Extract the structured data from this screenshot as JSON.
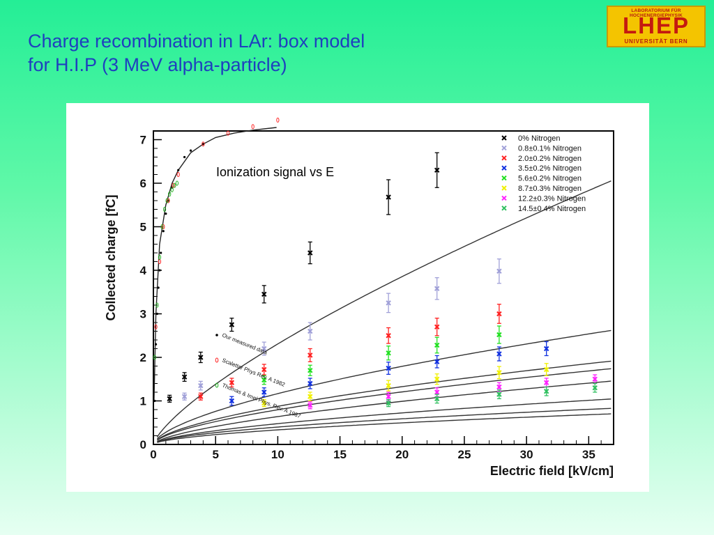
{
  "title": {
    "line1": "Charge recombination in LAr: box model",
    "line2": "for H.I.P (3 MeV alpha-particle)"
  },
  "logo": {
    "top": "LABORATORIUM FÜR HOCHENERGIEPHYSIK",
    "main": "LHEP",
    "bottom": "UNIVERSITÄT BERN"
  },
  "colors": {
    "title": "#1f3fbf",
    "logo_bg": "#f4c400",
    "logo_text": "#c41a10"
  },
  "chart_data": {
    "type": "scatter",
    "xlabel": "Electric field [kV/cm]",
    "ylabel": "Collected charge [fC]",
    "xlim": [
      0,
      37
    ],
    "ylim": [
      0,
      7.2
    ],
    "xticks": [
      0,
      5,
      10,
      15,
      20,
      25,
      30,
      35
    ],
    "yticks": [
      0,
      1,
      2,
      3,
      4,
      5,
      6,
      7
    ],
    "annotation": "Ionization signal  vs E",
    "legend_position": "top-right",
    "series": [
      {
        "name": "0% Nitrogen",
        "color": "#000000",
        "x": [
          1.3,
          2.5,
          3.8,
          6.3,
          8.9,
          12.6,
          18.9,
          22.8
        ],
        "y": [
          1.05,
          1.55,
          2.0,
          2.75,
          3.45,
          4.4,
          5.68,
          6.3
        ],
        "err": [
          0.08,
          0.1,
          0.12,
          0.15,
          0.2,
          0.25,
          0.4,
          0.4
        ],
        "fit": [
          0.42,
          0.74
        ]
      },
      {
        "name": "0.8±0.1% Nitrogen",
        "color": "#a0a0d8",
        "x": [
          2.5,
          3.8,
          8.9,
          12.6,
          18.9,
          22.8,
          27.8
        ],
        "y": [
          1.1,
          1.35,
          2.2,
          2.6,
          3.25,
          3.58,
          3.98
        ],
        "err": [
          0.08,
          0.1,
          0.15,
          0.2,
          0.22,
          0.25,
          0.28
        ],
        "fit": [
          0.28,
          0.62
        ]
      },
      {
        "name": "2.0±0.2% Nitrogen",
        "color": "#ff2020",
        "x": [
          3.8,
          6.3,
          8.9,
          12.6,
          18.9,
          22.8,
          27.8
        ],
        "y": [
          1.1,
          1.42,
          1.72,
          2.05,
          2.5,
          2.7,
          3.0
        ],
        "err": [
          0.08,
          0.1,
          0.12,
          0.15,
          0.18,
          0.2,
          0.22
        ],
        "fit": [
          0.22,
          0.6
        ]
      },
      {
        "name": "3.5±0.2% Nitrogen",
        "color": "#1030e0",
        "x": [
          6.3,
          8.9,
          12.6,
          18.9,
          22.8,
          27.8,
          31.6
        ],
        "y": [
          1.0,
          1.2,
          1.4,
          1.75,
          1.9,
          2.08,
          2.2
        ],
        "err": [
          0.1,
          0.1,
          0.12,
          0.14,
          0.14,
          0.16,
          0.16
        ],
        "fit": [
          0.2,
          0.6
        ]
      },
      {
        "name": "5.6±0.2% Nitrogen",
        "color": "#20e020",
        "x": [
          8.9,
          12.6,
          18.9,
          22.8,
          27.8
        ],
        "y": [
          1.48,
          1.7,
          2.1,
          2.28,
          2.52
        ],
        "err": [
          0.1,
          0.12,
          0.16,
          0.18,
          0.2
        ],
        "fit": [
          0.15,
          0.63
        ]
      },
      {
        "name": "8.7±0.3% Nitrogen",
        "color": "#f0f000",
        "x": [
          8.9,
          12.6,
          18.9,
          22.8,
          27.8,
          31.6
        ],
        "y": [
          0.95,
          1.1,
          1.35,
          1.5,
          1.65,
          1.72
        ],
        "err": [
          0.08,
          0.1,
          0.12,
          0.12,
          0.14,
          0.14
        ],
        "fit": [
          0.12,
          0.6
        ]
      },
      {
        "name": "12.2±0.3% Nitrogen",
        "color": "#ff20ff",
        "x": [
          12.6,
          18.9,
          22.8,
          27.8,
          31.6,
          35.5
        ],
        "y": [
          0.9,
          1.1,
          1.2,
          1.32,
          1.42,
          1.5
        ],
        "err": [
          0.08,
          0.1,
          0.1,
          0.1,
          0.1,
          0.1
        ],
        "fit": [
          0.11,
          0.56
        ]
      },
      {
        "name": "14.5±0.4% Nitrogen",
        "color": "#30c060",
        "x": [
          18.9,
          22.8,
          27.8,
          31.6,
          35.5
        ],
        "y": [
          0.95,
          1.05,
          1.15,
          1.22,
          1.3
        ],
        "err": [
          0.08,
          0.1,
          0.1,
          0.1,
          0.1
        ],
        "fit": [
          0.09,
          0.57
        ]
      }
    ],
    "overlay": {
      "legend": [
        {
          "name": "Our measured data",
          "marker": "dot",
          "color": "#000000"
        },
        {
          "name": "Scalettar Phys Rev. A 1982",
          "marker": "o",
          "color": "#ff2020"
        },
        {
          "name": "Thomas & Imel Phys. Rev. A 1987",
          "marker": "o",
          "color": "#20b020"
        }
      ],
      "black_x": [
        0.1,
        0.2,
        0.3,
        0.4,
        0.5,
        0.6,
        0.8,
        1.0,
        1.2,
        1.5,
        2.0,
        2.5,
        3.0,
        4.0
      ],
      "black_y": [
        1.0,
        2.3,
        3.0,
        3.6,
        4.0,
        4.4,
        4.9,
        5.3,
        5.6,
        5.9,
        6.3,
        6.6,
        6.75,
        6.9
      ],
      "red_x": [
        0.2,
        0.5,
        0.8,
        1.2,
        1.6,
        2.0,
        4.0,
        6.0,
        8.0,
        10.0
      ],
      "red_y": [
        2.7,
        4.2,
        5.0,
        5.6,
        5.95,
        6.2,
        6.9,
        7.15,
        7.3,
        7.45
      ],
      "green_x": [
        0.1,
        0.3,
        0.5,
        0.7,
        0.9,
        1.1,
        1.3,
        1.5,
        1.7,
        1.9
      ],
      "green_y": [
        2.0,
        3.2,
        4.3,
        5.0,
        5.4,
        5.6,
        5.75,
        5.85,
        5.95,
        6.0
      ],
      "curve_x": [
        0.05,
        0.2,
        0.5,
        1.0,
        1.5,
        2.0,
        3.0,
        4.0,
        5.0,
        6.5,
        8.0,
        9.9
      ],
      "curve_y": [
        1.0,
        3.0,
        4.6,
        5.5,
        6.0,
        6.3,
        6.7,
        6.9,
        7.05,
        7.15,
        7.22,
        7.28
      ]
    }
  }
}
